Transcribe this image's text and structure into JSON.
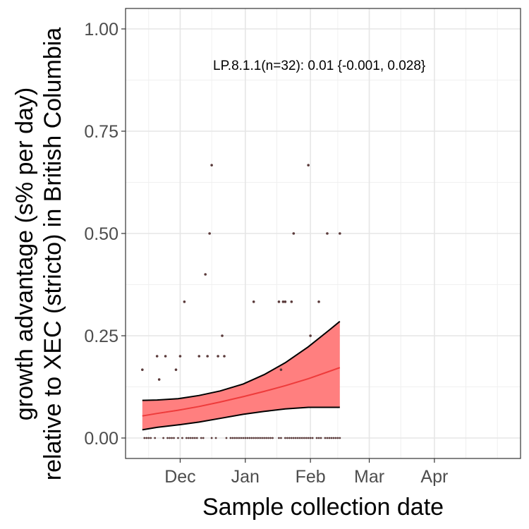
{
  "chart_data": {
    "type": "scatter",
    "title": "",
    "xlabel": "Sample collection date",
    "ylabel_line1": "growth advantage (s% per day)",
    "ylabel_line2": "relative to XEC (stricto) in British Columbia",
    "ylim": [
      -0.05,
      1.05
    ],
    "xlim": [
      "2024-11-05",
      "2025-05-12"
    ],
    "y_ticks": [
      {
        "value": 0.0,
        "label": "0.00"
      },
      {
        "value": 0.25,
        "label": "0.25"
      },
      {
        "value": 0.5,
        "label": "0.50"
      },
      {
        "value": 0.75,
        "label": "0.75"
      },
      {
        "value": 1.0,
        "label": "1.00"
      }
    ],
    "x_ticks": [
      {
        "date": "2024-12-01",
        "label": "Dec"
      },
      {
        "date": "2025-01-01",
        "label": "Jan"
      },
      {
        "date": "2025-02-01",
        "label": "Feb"
      },
      {
        "date": "2025-03-01",
        "label": "Mar"
      },
      {
        "date": "2025-04-01",
        "label": "Apr"
      }
    ],
    "x_minor_ticks": [
      "2024-11-16",
      "2024-12-16",
      "2025-01-16",
      "2025-02-14",
      "2025-03-16",
      "2025-04-16",
      "2025-05-01"
    ],
    "grid": true,
    "annotation": "LP.8.1.1(n=32): 0.01 {-0.001, 0.028}",
    "points": [
      {
        "x": "2024-11-13",
        "y": 0.167
      },
      {
        "x": "2024-11-20",
        "y": 0.2
      },
      {
        "x": "2024-11-21",
        "y": 0.143
      },
      {
        "x": "2024-11-24",
        "y": 0.2
      },
      {
        "x": "2024-11-29",
        "y": 0.167
      },
      {
        "x": "2024-12-01",
        "y": 0.2
      },
      {
        "x": "2024-12-03",
        "y": 0.333
      },
      {
        "x": "2024-12-10",
        "y": 0.2
      },
      {
        "x": "2024-12-13",
        "y": 0.4
      },
      {
        "x": "2024-12-14",
        "y": 0.2
      },
      {
        "x": "2024-12-15",
        "y": 0.5
      },
      {
        "x": "2024-12-16",
        "y": 0.667
      },
      {
        "x": "2024-12-19",
        "y": 0.2
      },
      {
        "x": "2024-12-21",
        "y": 0.25
      },
      {
        "x": "2024-12-22",
        "y": 0.2
      },
      {
        "x": "2025-01-05",
        "y": 0.333
      },
      {
        "x": "2025-01-17",
        "y": 0.333
      },
      {
        "x": "2025-01-18",
        "y": 0.167
      },
      {
        "x": "2025-01-19",
        "y": 0.333
      },
      {
        "x": "2025-01-20",
        "y": 0.333
      },
      {
        "x": "2025-01-23",
        "y": 0.333
      },
      {
        "x": "2025-01-24",
        "y": 0.5
      },
      {
        "x": "2025-01-31",
        "y": 0.667
      },
      {
        "x": "2025-02-01",
        "y": 0.25
      },
      {
        "x": "2025-02-05",
        "y": 0.333
      },
      {
        "x": "2025-02-09",
        "y": 0.5
      },
      {
        "x": "2025-02-15",
        "y": 0.5
      }
    ],
    "zero_points_x": [
      "2024-11-14",
      "2024-11-15",
      "2024-11-16",
      "2024-11-17",
      "2024-11-19",
      "2024-11-23",
      "2024-11-25",
      "2024-11-26",
      "2024-11-27",
      "2024-11-28",
      "2024-11-30",
      "2024-12-02",
      "2024-12-04",
      "2024-12-05",
      "2024-12-06",
      "2024-12-07",
      "2024-12-08",
      "2024-12-09",
      "2024-12-11",
      "2024-12-12",
      "2024-12-16",
      "2024-12-18",
      "2024-12-23",
      "2024-12-25",
      "2024-12-26",
      "2024-12-27",
      "2024-12-28",
      "2024-12-29",
      "2024-12-30",
      "2024-12-31",
      "2025-01-01",
      "2025-01-02",
      "2025-01-03",
      "2025-01-04",
      "2025-01-05",
      "2025-01-06",
      "2025-01-07",
      "2025-01-08",
      "2025-01-09",
      "2025-01-10",
      "2025-01-11",
      "2025-01-12",
      "2025-01-13",
      "2025-01-14",
      "2025-01-17",
      "2025-01-18",
      "2025-01-20",
      "2025-01-21",
      "2025-01-22",
      "2025-01-23",
      "2025-01-24",
      "2025-01-25",
      "2025-01-26",
      "2025-01-27",
      "2025-01-28",
      "2025-01-29",
      "2025-01-30",
      "2025-01-31",
      "2025-02-01",
      "2025-02-02",
      "2025-02-04",
      "2025-02-05",
      "2025-02-06",
      "2025-02-08",
      "2025-02-09",
      "2025-02-10",
      "2025-02-11",
      "2025-02-12",
      "2025-02-13",
      "2025-02-14",
      "2025-02-15"
    ],
    "fit": {
      "x": [
        "2024-11-13",
        "2024-11-20",
        "2024-11-30",
        "2024-12-10",
        "2024-12-20",
        "2024-12-31",
        "2025-01-10",
        "2025-01-20",
        "2025-01-31",
        "2025-02-10",
        "2025-02-15"
      ],
      "y": [
        0.054,
        0.06,
        0.068,
        0.077,
        0.088,
        0.101,
        0.114,
        0.128,
        0.145,
        0.163,
        0.172
      ],
      "lower": [
        0.02,
        0.026,
        0.032,
        0.039,
        0.048,
        0.058,
        0.065,
        0.071,
        0.075,
        0.075,
        0.075
      ],
      "upper": [
        0.092,
        0.093,
        0.096,
        0.104,
        0.115,
        0.132,
        0.155,
        0.184,
        0.223,
        0.264,
        0.285
      ],
      "line_color": "#ee3b3b",
      "band_color": "#ff7f7f"
    },
    "point_color": "#5a3a3a"
  }
}
